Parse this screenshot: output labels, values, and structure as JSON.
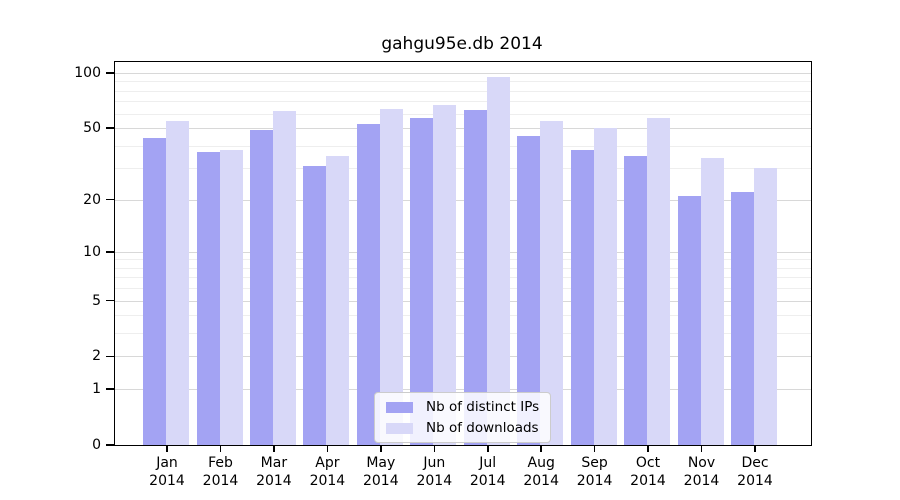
{
  "chart_data": {
    "type": "bar",
    "title": "gahgu95e.db 2014",
    "yscale": "log1p",
    "grid": true,
    "legend_position": "bottom-center-inside",
    "categories": [
      "Jan",
      "Feb",
      "Mar",
      "Apr",
      "May",
      "Jun",
      "Jul",
      "Aug",
      "Sep",
      "Oct",
      "Nov",
      "Dec"
    ],
    "category_year": "2014",
    "series": [
      {
        "name": "Nb of distinct IPs",
        "color": "#a3a3f3",
        "values": [
          44,
          37,
          49,
          31,
          53,
          57,
          63,
          45,
          38,
          35,
          21,
          22
        ]
      },
      {
        "name": "Nb of downloads",
        "color": "#d8d8f8",
        "values": [
          55,
          38,
          62,
          35,
          64,
          67,
          95,
          55,
          50,
          57,
          34,
          30
        ]
      }
    ],
    "yticks": [
      0,
      1,
      2,
      5,
      10,
      20,
      50,
      100
    ],
    "minor_gridlines": [
      3,
      4,
      6,
      7,
      8,
      9,
      30,
      40,
      60,
      70,
      80,
      90
    ],
    "ylim": [
      0,
      115
    ]
  },
  "colors": {
    "major_grid": "#d8d8d8",
    "minor_grid": "#eeeeee",
    "spine": "#000000",
    "legend_border": "#cccccc"
  }
}
